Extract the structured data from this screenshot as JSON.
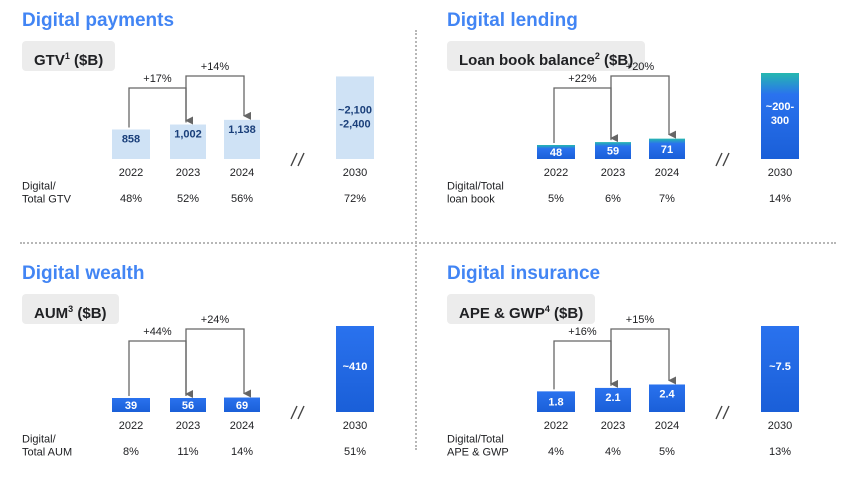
{
  "colors": {
    "title": "#4285f4",
    "arrow": "#666666",
    "light_bar": "#cfe2f5",
    "light_text": "#1a3f7a",
    "dark_bar": "#1a5fd8",
    "dark_bar_top": "#2a72ee",
    "teal_top": "#25b8b0"
  },
  "panels": [
    {
      "id": "payments",
      "title": "Digital payments",
      "metric": "GTV",
      "metric_sup": "1",
      "metric_unit": " ($B)",
      "style": "light",
      "chart_data": {
        "type": "bar",
        "categories": [
          "2022",
          "2023",
          "2024",
          "2030"
        ],
        "values": [
          858,
          1002,
          1138,
          2400
        ],
        "value_labels": [
          "858",
          "1,002",
          "1,138",
          "~2,100\n-2,400"
        ],
        "range_low_2030": 2100,
        "growth": [
          {
            "from": 0,
            "to": 1,
            "label": "+17%"
          },
          {
            "from": 1,
            "to": 2,
            "label": "+14%"
          }
        ],
        "ratio_label": "Digital/\nTotal GTV",
        "ratios": [
          "48%",
          "52%",
          "56%",
          "72%"
        ],
        "ymax": 2500
      }
    },
    {
      "id": "lending",
      "title": "Digital lending",
      "metric": "Loan book balance",
      "metric_sup": "2",
      "metric_unit": " ($B)",
      "style": "teal",
      "chart_data": {
        "type": "bar",
        "categories": [
          "2022",
          "2023",
          "2024",
          "2030"
        ],
        "values": [
          48,
          59,
          71,
          300
        ],
        "value_labels": [
          "48",
          "59",
          "71",
          "~200-\n300"
        ],
        "range_low_2030": 200,
        "growth": [
          {
            "from": 0,
            "to": 1,
            "label": "+22%"
          },
          {
            "from": 1,
            "to": 2,
            "label": "+20%"
          }
        ],
        "ratio_label": "Digital/Total\nloan book",
        "ratios": [
          "5%",
          "6%",
          "7%",
          "14%"
        ],
        "ymax": 300
      }
    },
    {
      "id": "wealth",
      "title": "Digital wealth",
      "metric": "AUM",
      "metric_sup": "3",
      "metric_unit": " ($B)",
      "style": "dark",
      "chart_data": {
        "type": "bar",
        "categories": [
          "2022",
          "2023",
          "2024",
          "2030"
        ],
        "values": [
          39,
          56,
          69,
          410
        ],
        "value_labels": [
          "39",
          "56",
          "69",
          "~410"
        ],
        "growth": [
          {
            "from": 0,
            "to": 1,
            "label": "+44%"
          },
          {
            "from": 1,
            "to": 2,
            "label": "+24%"
          }
        ],
        "ratio_label": "Digital/\nTotal AUM",
        "ratios": [
          "8%",
          "11%",
          "14%",
          "51%"
        ],
        "ymax": 410
      }
    },
    {
      "id": "insurance",
      "title": "Digital insurance",
      "metric": "APE & GWP",
      "metric_sup": "4",
      "metric_unit": " ($B)",
      "style": "dark",
      "chart_data": {
        "type": "bar",
        "categories": [
          "2022",
          "2023",
          "2024",
          "2030"
        ],
        "values": [
          1.8,
          2.1,
          2.4,
          7.5
        ],
        "value_labels": [
          "1.8",
          "2.1",
          "2.4",
          "~7.5"
        ],
        "growth": [
          {
            "from": 0,
            "to": 1,
            "label": "+16%"
          },
          {
            "from": 1,
            "to": 2,
            "label": "+15%"
          }
        ],
        "ratio_label": "Digital/Total\nAPE & GWP",
        "ratios": [
          "4%",
          "4%",
          "5%",
          "13%"
        ],
        "ymax": 7.5
      }
    }
  ]
}
